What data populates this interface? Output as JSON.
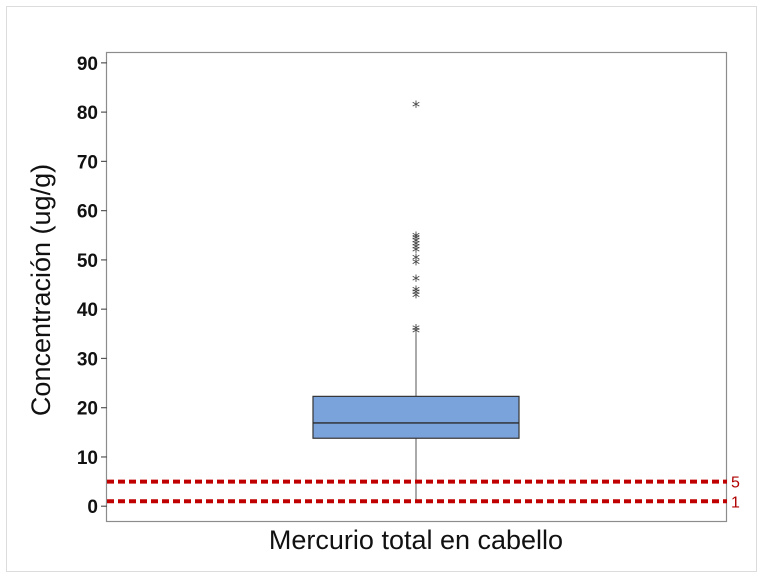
{
  "chart_data": {
    "type": "boxplot",
    "xlabel": "Mercurio total en cabello",
    "ylabel": "Concentración (ug/g)",
    "ylim": [
      -3,
      92
    ],
    "yticks": [
      0,
      10,
      20,
      30,
      40,
      50,
      60,
      70,
      80,
      90
    ],
    "grid": false,
    "box": {
      "whisker_low": 1,
      "q1": 13.8,
      "median": 16.9,
      "q3": 22.3,
      "whisker_high": 35,
      "fill": "#7ba3db",
      "edge": "#333333"
    },
    "outliers": [
      35.4,
      35.9,
      42.6,
      43.2,
      43.7,
      45.9,
      49.3,
      50.2,
      51.8,
      52.4,
      53.0,
      53.6,
      54.2,
      54.7,
      81.2
    ],
    "reference_lines": [
      {
        "value": 5,
        "label": "5",
        "color": "#c00000"
      },
      {
        "value": 1,
        "label": "1",
        "color": "#c00000"
      }
    ]
  }
}
